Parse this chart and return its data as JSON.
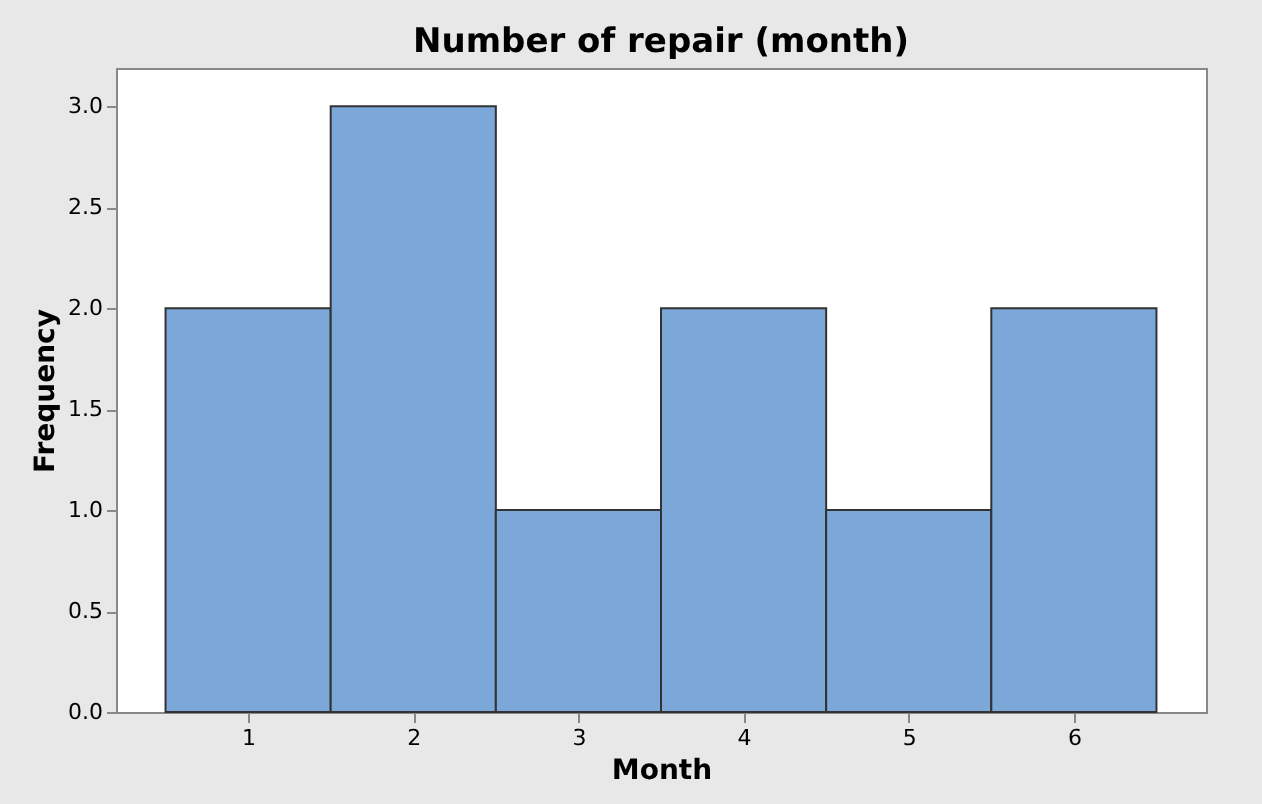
{
  "chart_data": {
    "type": "histogram",
    "title": "Number of repair (month)",
    "xlabel": "Month",
    "ylabel": "Frequency",
    "bins": [
      0.5,
      1.5,
      2.5,
      3.5,
      4.5,
      5.5,
      6.5
    ],
    "values": [
      2,
      3,
      1,
      2,
      1,
      2
    ],
    "color": "#7ba7d9",
    "xlim": [
      0.2,
      6.8
    ],
    "xticks": [
      1,
      2,
      3,
      4,
      5,
      6
    ],
    "ylim": [
      0,
      3.19
    ],
    "yticks": [
      {
        "value": 0,
        "label": "0.0"
      },
      {
        "value": 0.5,
        "label": "0.5"
      },
      {
        "value": 1,
        "label": "1.0"
      },
      {
        "value": 1.5,
        "label": "1.5"
      },
      {
        "value": 2,
        "label": "2.0"
      },
      {
        "value": 2.5,
        "label": "2.5"
      },
      {
        "value": 3,
        "label": "3.0"
      }
    ],
    "grid": false
  }
}
